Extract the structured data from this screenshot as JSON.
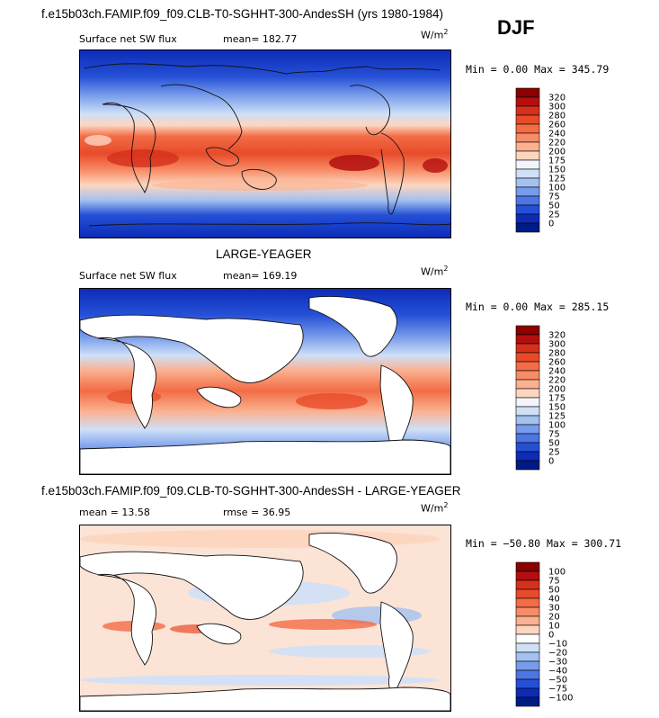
{
  "header": {
    "case_title": "f.e15b03ch.FAMIP.f09_f09.CLB-T0-SGHHT-300-AndesSH (yrs 1980-1984)",
    "season": "DJF"
  },
  "panels": [
    {
      "id": "model",
      "variable": "Surface net SW flux",
      "stat1": "mean=  182.77",
      "stat2": "",
      "units_base": "W/m",
      "units_exp": "2",
      "minmax": "Min =   0.00 Max = 345.79",
      "levels": [
        "320",
        "300",
        "280",
        "260",
        "240",
        "220",
        "200",
        "175",
        "150",
        "125",
        "100",
        "75",
        "50",
        "25",
        "0"
      ],
      "colors": [
        "#8b0000",
        "#b30f0f",
        "#d6301c",
        "#e84b2a",
        "#f26c45",
        "#f78c66",
        "#fbb18f",
        "#fdd6c0",
        "#f2f6fb",
        "#cfe0f7",
        "#a3c2f0",
        "#779ceb",
        "#4d76e3",
        "#2550d6",
        "#0c2cb8",
        "#001a85"
      ]
    },
    {
      "id": "obs",
      "section_title": "LARGE-YEAGER",
      "variable": "Surface net SW flux",
      "stat1": "mean=  169.19",
      "stat2": "",
      "units_base": "W/m",
      "units_exp": "2",
      "minmax": "Min =   0.00 Max = 285.15",
      "levels": [
        "320",
        "300",
        "280",
        "260",
        "240",
        "220",
        "200",
        "175",
        "150",
        "125",
        "100",
        "75",
        "50",
        "25",
        "0"
      ],
      "colors": [
        "#8b0000",
        "#b30f0f",
        "#d6301c",
        "#e84b2a",
        "#f26c45",
        "#f78c66",
        "#fbb18f",
        "#fdd6c0",
        "#f2f6fb",
        "#cfe0f7",
        "#a3c2f0",
        "#779ceb",
        "#4d76e3",
        "#2550d6",
        "#0c2cb8",
        "#001a85"
      ]
    },
    {
      "id": "diff",
      "section_title": "f.e15b03ch.FAMIP.f09_f09.CLB-T0-SGHHT-300-AndesSH - LARGE-YEAGER",
      "variable": "",
      "stat1": "mean =   13.58",
      "stat2": "rmse =   36.95",
      "units_base": "W/m",
      "units_exp": "2",
      "minmax": "Min = −50.80 Max = 300.71",
      "levels": [
        "100",
        "75",
        "50",
        "40",
        "30",
        "20",
        "10",
        "0",
        "−10",
        "−20",
        "−30",
        "−40",
        "−50",
        "−75",
        "−100"
      ],
      "colors": [
        "#8b0000",
        "#b30f0f",
        "#d6301c",
        "#e84b2a",
        "#f26c45",
        "#f78c66",
        "#fbb18f",
        "#fdd6c0",
        "#ffffff",
        "#cfe0f7",
        "#a3c2f0",
        "#779ceb",
        "#4d76e3",
        "#2550d6",
        "#0c2cb8",
        "#001a85"
      ]
    }
  ],
  "chart_data": [
    {
      "type": "heatmap",
      "title": "Surface net SW flux",
      "mean": 182.77,
      "min": 0.0,
      "max": 345.79,
      "units": "W/m2",
      "colorbar_levels": [
        0,
        25,
        50,
        75,
        100,
        125,
        150,
        175,
        200,
        220,
        240,
        260,
        280,
        300,
        320
      ],
      "approx_zonal_band_values": {
        "lat": [
          80,
          60,
          40,
          20,
          0,
          -20,
          -40,
          -60,
          -80
        ],
        "value": [
          10,
          40,
          120,
          230,
          270,
          290,
          220,
          110,
          40
        ]
      }
    },
    {
      "type": "heatmap",
      "title": "Surface net SW flux",
      "mean": 169.19,
      "min": 0.0,
      "max": 285.15,
      "units": "W/m2",
      "colorbar_levels": [
        0,
        25,
        50,
        75,
        100,
        125,
        150,
        175,
        200,
        220,
        240,
        260,
        280,
        300,
        320
      ],
      "approx_zonal_band_values": {
        "lat": [
          80,
          60,
          40,
          20,
          0,
          -20,
          -40,
          -60,
          -80
        ],
        "value": [
          5,
          30,
          110,
          220,
          240,
          260,
          200,
          90,
          40
        ]
      }
    },
    {
      "type": "heatmap",
      "title": "",
      "mean": 13.58,
      "rmse": 36.95,
      "min": -50.8,
      "max": 300.71,
      "units": "W/m2",
      "colorbar_levels": [
        -100,
        -75,
        -50,
        -40,
        -30,
        -20,
        -10,
        0,
        10,
        20,
        30,
        40,
        50,
        75,
        100
      ],
      "approx_zonal_band_values": {
        "lat": [
          80,
          60,
          40,
          20,
          0,
          -20,
          -40,
          -60,
          -80
        ],
        "value": [
          5,
          10,
          10,
          15,
          25,
          30,
          20,
          10,
          -5
        ]
      }
    }
  ]
}
